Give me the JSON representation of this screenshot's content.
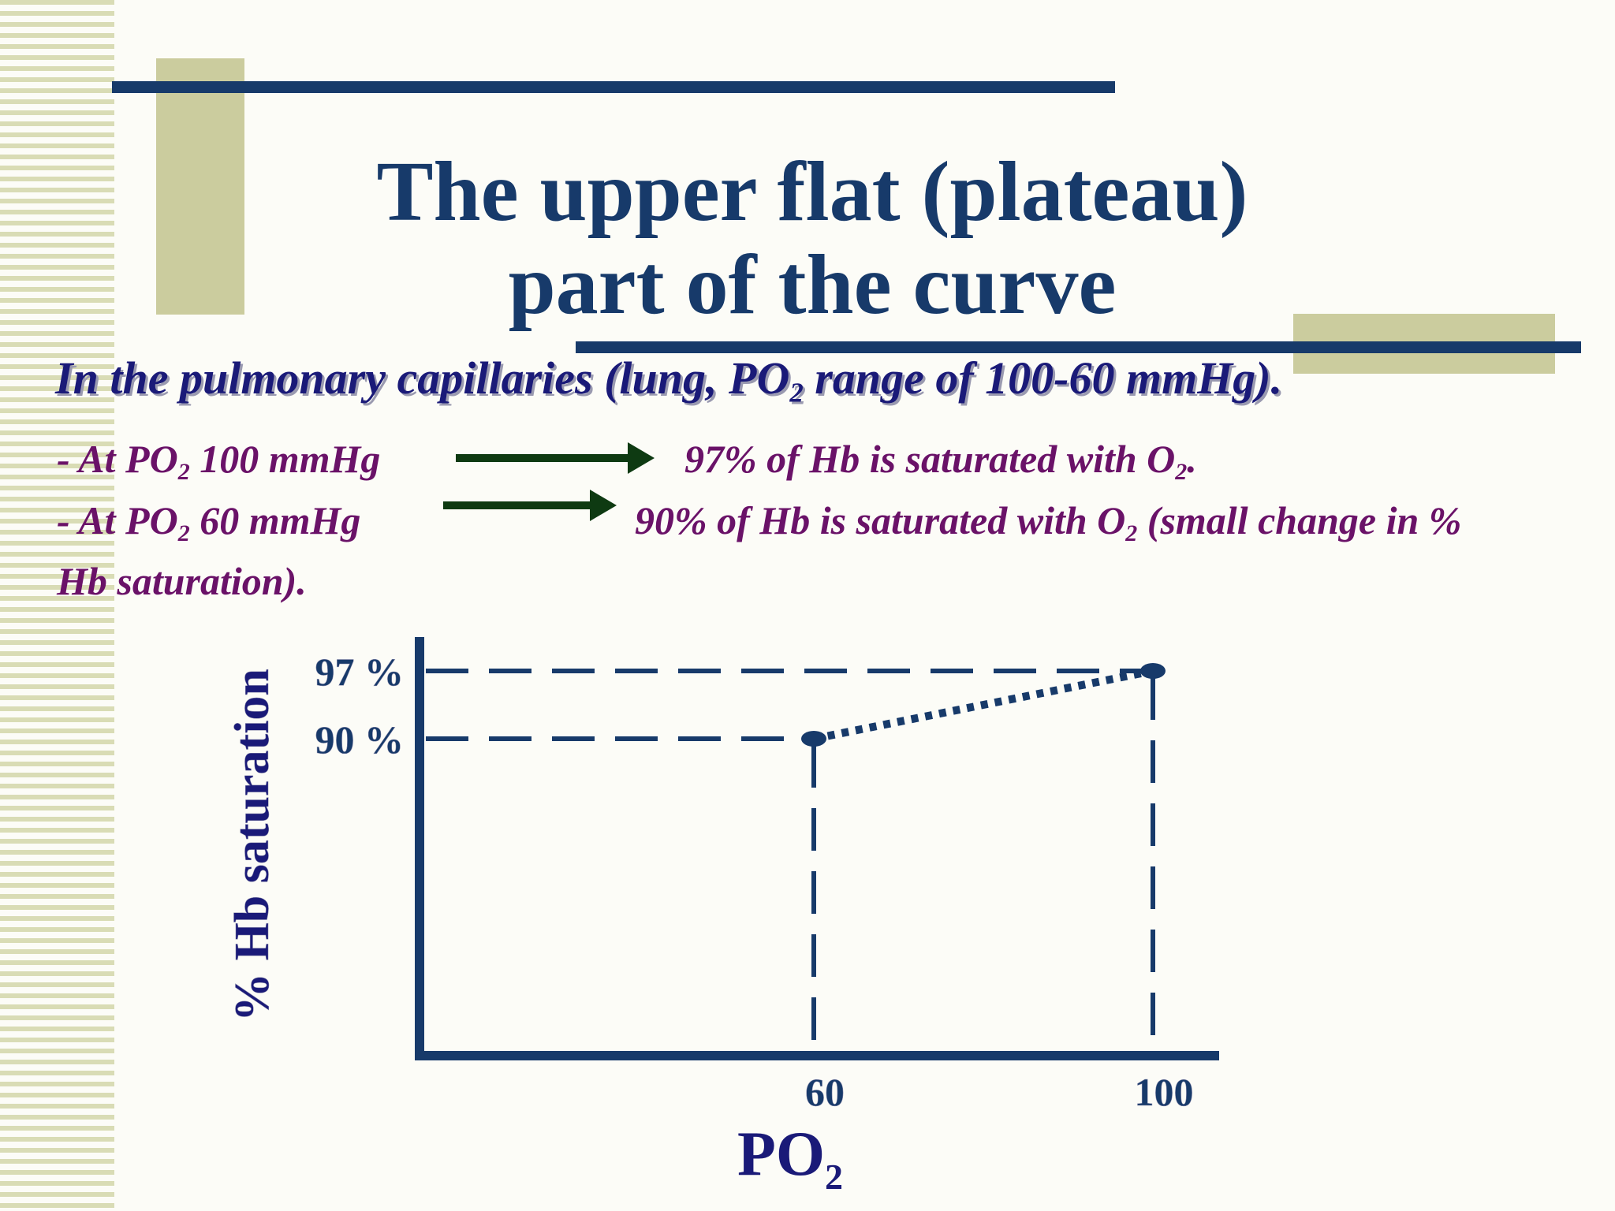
{
  "slide": {
    "title_line1": "The upper flat (plateau)",
    "title_line2": "part of the curve",
    "subhead_a": "In the pulmonary capillaries (lung, PO",
    "subhead_sub": "2",
    "subhead_b": " range of 100-60 mmHg).",
    "line1_a": "- At PO",
    "line1_sub": "2",
    "line1_b": " 100 mmHg",
    "line1_result_a": "97% of Hb is saturated with O",
    "line1_result_sub": "2",
    "line1_result_b": ".",
    "line2_a": "- At PO",
    "line2_sub": "2",
    "line2_b": " 60 mmHg",
    "line2_result_a": "90% of Hb is saturated with O",
    "line2_result_sub": "2",
    "line2_result_b": " (small change in %",
    "line3": "Hb saturation)."
  },
  "colors": {
    "navy": "#173a6a",
    "purple": "#6a1268",
    "arrow": "#0e3a12",
    "accent": "#cbcc9e"
  },
  "chart_data": {
    "type": "line",
    "points": [
      {
        "x": 60,
        "y": 90
      },
      {
        "x": 100,
        "y": 97
      }
    ],
    "ytick_labels": [
      "97 %",
      "90 %"
    ],
    "xtick_labels": [
      "60",
      "100"
    ],
    "ylabel": "% Hb saturation",
    "xlabel_main": "PO",
    "xlabel_sub": "2",
    "line_style": "dotted",
    "guide_lines": "dashed"
  }
}
